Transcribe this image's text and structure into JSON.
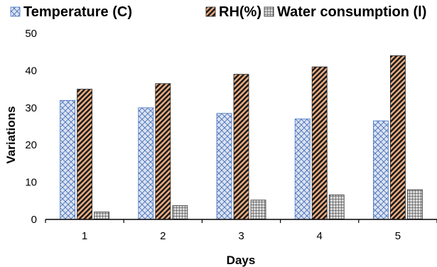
{
  "chart_data": {
    "type": "bar",
    "title": "",
    "xlabel": "Days",
    "ylabel": "Variations",
    "categories": [
      "1",
      "2",
      "3",
      "4",
      "5"
    ],
    "ylim": [
      0,
      50
    ],
    "yticks": [
      0,
      10,
      20,
      30,
      40,
      50
    ],
    "grid": false,
    "legend_position": "top",
    "series": [
      {
        "name": "Temperature (C)",
        "values": [
          32,
          30,
          28.5,
          27,
          26.5
        ],
        "pattern": "crosshatch",
        "color": "#4472c4",
        "fill": "#dae3f3"
      },
      {
        "name": "RH(%)",
        "values": [
          35,
          36.5,
          39,
          41,
          44
        ],
        "pattern": "diagonal",
        "color": "#1f1f1f",
        "fill": "#f4b183"
      },
      {
        "name": "Water consumption (l)",
        "values": [
          2,
          3.7,
          5.2,
          6.6,
          8
        ],
        "pattern": "grid",
        "color": "#333333",
        "fill": "#bfbfbf"
      }
    ]
  }
}
